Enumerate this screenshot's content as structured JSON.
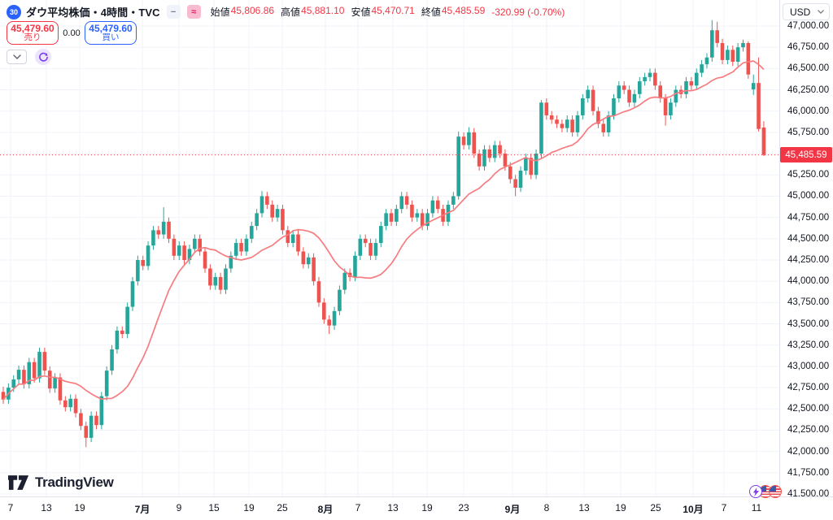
{
  "header": {
    "symbol_badge": "30",
    "title": "ダウ平均株価・4時間・TVC",
    "ohlc": {
      "open_label": "始値",
      "open": "45,806.86",
      "high_label": "高値",
      "high": "45,881.10",
      "low_label": "安値",
      "low": "45,470.71",
      "close_label": "終値",
      "close": "45,485.59",
      "change": "-320.99 (-0.70%)"
    }
  },
  "trade_panel": {
    "sell_price": "45,479.60",
    "sell_label": "売り",
    "spread": "0.00",
    "buy_price": "45,479.60",
    "buy_label": "買い"
  },
  "price_axis": {
    "currency": "USD",
    "last_price_label": "45,485.59"
  },
  "logo": {
    "text": "TradingView"
  },
  "colors": {
    "up": "#26a69a",
    "down": "#ef5350",
    "ma_line": "#f77c80",
    "accent_red": "#f23645",
    "accent_blue": "#2962ff",
    "grid": "#f0f3fa",
    "axis_text": "#131722",
    "purple": "#7c3aed"
  },
  "chart_data": {
    "type": "candlestick",
    "title": "ダウ平均株価・4時間・TVC",
    "ylabel": "USD",
    "ylim": [
      41500,
      47000
    ],
    "y_tick_step": 250,
    "grid": true,
    "last_price": 45485.59,
    "overlay": {
      "kind": "sma",
      "period": 14
    },
    "x_ticks": [
      {
        "label": "7",
        "x": 13,
        "bold": false
      },
      {
        "label": "13",
        "x": 57,
        "bold": false
      },
      {
        "label": "19",
        "x": 98,
        "bold": false
      },
      {
        "label": "7月",
        "x": 175,
        "bold": true
      },
      {
        "label": "9",
        "x": 220,
        "bold": false
      },
      {
        "label": "15",
        "x": 263,
        "bold": false
      },
      {
        "label": "19",
        "x": 306,
        "bold": false
      },
      {
        "label": "25",
        "x": 347,
        "bold": false
      },
      {
        "label": "8月",
        "x": 400,
        "bold": true
      },
      {
        "label": "7",
        "x": 440,
        "bold": false
      },
      {
        "label": "13",
        "x": 483,
        "bold": false
      },
      {
        "label": "19",
        "x": 525,
        "bold": false
      },
      {
        "label": "23",
        "x": 570,
        "bold": false
      },
      {
        "label": "9月",
        "x": 630,
        "bold": true
      },
      {
        "label": "8",
        "x": 672,
        "bold": false
      },
      {
        "label": "13",
        "x": 718,
        "bold": false
      },
      {
        "label": "19",
        "x": 763,
        "bold": false
      },
      {
        "label": "25",
        "x": 806,
        "bold": false
      },
      {
        "label": "10月",
        "x": 852,
        "bold": true
      },
      {
        "label": "7",
        "x": 890,
        "bold": false
      },
      {
        "label": "11",
        "x": 930,
        "bold": false
      }
    ],
    "candles": [
      [
        42700,
        42760,
        42560,
        42610
      ],
      [
        42610,
        42800,
        42560,
        42750
      ],
      [
        42750,
        42896,
        42700,
        42846
      ],
      [
        42846,
        43010,
        42796,
        42960
      ],
      [
        42960,
        43010,
        42740,
        42790
      ],
      [
        42790,
        43100,
        42740,
        43050
      ],
      [
        43050,
        43100,
        42810,
        42860
      ],
      [
        42860,
        43220,
        42810,
        43170
      ],
      [
        43170,
        43220,
        42900,
        42950
      ],
      [
        42950,
        43000,
        42690,
        42740
      ],
      [
        42740,
        42920,
        42690,
        42870
      ],
      [
        42870,
        42920,
        42550,
        42600
      ],
      [
        42600,
        42650,
        42470,
        42520
      ],
      [
        42520,
        42670,
        42470,
        42620
      ],
      [
        42620,
        42670,
        42400,
        42450
      ],
      [
        42450,
        42500,
        42250,
        42300
      ],
      [
        42300,
        42350,
        42050,
        42160
      ],
      [
        42160,
        42470,
        42110,
        42420
      ],
      [
        42420,
        42470,
        42260,
        42310
      ],
      [
        42310,
        42700,
        42260,
        42650
      ],
      [
        42650,
        43000,
        42600,
        42950
      ],
      [
        42950,
        43250,
        42900,
        43200
      ],
      [
        43200,
        43470,
        43150,
        43420
      ],
      [
        43420,
        43470,
        43330,
        43380
      ],
      [
        43380,
        43750,
        43330,
        43700
      ],
      [
        43700,
        44050,
        43650,
        44000
      ],
      [
        44000,
        44300,
        43950,
        44250
      ],
      [
        44250,
        44300,
        44130,
        44180
      ],
      [
        44180,
        44470,
        44130,
        44420
      ],
      [
        44420,
        44650,
        44370,
        44600
      ],
      [
        44600,
        44650,
        44500,
        44550
      ],
      [
        44550,
        44870,
        44500,
        44700
      ],
      [
        44700,
        44750,
        44450,
        44500
      ],
      [
        44500,
        44550,
        44250,
        44300
      ],
      [
        44300,
        44470,
        44250,
        44420
      ],
      [
        44420,
        44470,
        44200,
        44250
      ],
      [
        44250,
        44430,
        44200,
        44380
      ],
      [
        44380,
        44550,
        44330,
        44500
      ],
      [
        44500,
        44550,
        44300,
        44350
      ],
      [
        44350,
        44400,
        44100,
        44150
      ],
      [
        44150,
        44200,
        43900,
        43950
      ],
      [
        43950,
        44100,
        43900,
        44050
      ],
      [
        44050,
        44100,
        43850,
        43900
      ],
      [
        43900,
        44200,
        43850,
        44150
      ],
      [
        44150,
        44350,
        44100,
        44300
      ],
      [
        44300,
        44500,
        44250,
        44450
      ],
      [
        44450,
        44500,
        44300,
        44350
      ],
      [
        44350,
        44550,
        44300,
        44500
      ],
      [
        44500,
        44700,
        44450,
        44650
      ],
      [
        44650,
        44850,
        44600,
        44800
      ],
      [
        44800,
        45060,
        44750,
        45000
      ],
      [
        45000,
        45050,
        44850,
        44900
      ],
      [
        44900,
        44950,
        44700,
        44750
      ],
      [
        44750,
        44900,
        44700,
        44850
      ],
      [
        44850,
        44900,
        44550,
        44600
      ],
      [
        44600,
        44650,
        44400,
        44450
      ],
      [
        44450,
        44600,
        44400,
        44550
      ],
      [
        44550,
        44600,
        44300,
        44350
      ],
      [
        44350,
        44400,
        44150,
        44200
      ],
      [
        44200,
        44330,
        44150,
        44280
      ],
      [
        44280,
        44330,
        43950,
        44000
      ],
      [
        44000,
        44050,
        43700,
        43750
      ],
      [
        43750,
        43800,
        43500,
        43550
      ],
      [
        43550,
        43600,
        43380,
        43480
      ],
      [
        43480,
        43700,
        43430,
        43650
      ],
      [
        43650,
        43950,
        43600,
        43900
      ],
      [
        43900,
        44150,
        43850,
        44100
      ],
      [
        44100,
        44150,
        44000,
        44050
      ],
      [
        44050,
        44350,
        44000,
        44300
      ],
      [
        44300,
        44550,
        44250,
        44500
      ],
      [
        44500,
        44550,
        44400,
        44450
      ],
      [
        44450,
        44500,
        44250,
        44300
      ],
      [
        44300,
        44500,
        44250,
        44450
      ],
      [
        44450,
        44700,
        44400,
        44650
      ],
      [
        44650,
        44850,
        44600,
        44800
      ],
      [
        44800,
        44850,
        44650,
        44700
      ],
      [
        44700,
        44900,
        44650,
        44850
      ],
      [
        44850,
        45050,
        44800,
        45000
      ],
      [
        45000,
        45050,
        44850,
        44900
      ],
      [
        44900,
        44950,
        44700,
        44750
      ],
      [
        44750,
        44850,
        44700,
        44800
      ],
      [
        44800,
        44850,
        44600,
        44650
      ],
      [
        44650,
        44850,
        44600,
        44800
      ],
      [
        44800,
        45000,
        44750,
        44950
      ],
      [
        44950,
        45000,
        44800,
        44850
      ],
      [
        44850,
        44900,
        44650,
        44700
      ],
      [
        44700,
        44950,
        44650,
        44900
      ],
      [
        44900,
        45050,
        44850,
        45000
      ],
      [
        45000,
        45760,
        44960,
        45700
      ],
      [
        45700,
        45750,
        45550,
        45600
      ],
      [
        45600,
        45810,
        45550,
        45750
      ],
      [
        45750,
        45800,
        45450,
        45500
      ],
      [
        45500,
        45550,
        45300,
        45350
      ],
      [
        45350,
        45600,
        45300,
        45550
      ],
      [
        45550,
        45600,
        45400,
        45450
      ],
      [
        45450,
        45650,
        45400,
        45600
      ],
      [
        45600,
        45650,
        45450,
        45500
      ],
      [
        45500,
        45550,
        45300,
        45350
      ],
      [
        45350,
        45400,
        45150,
        45200
      ],
      [
        45200,
        45250,
        45000,
        45100
      ],
      [
        45100,
        45350,
        45050,
        45300
      ],
      [
        45300,
        45500,
        45250,
        45450
      ],
      [
        45450,
        45500,
        45200,
        45250
      ],
      [
        45250,
        45550,
        45200,
        45500
      ],
      [
        45500,
        46130,
        45450,
        46100
      ],
      [
        46100,
        46150,
        45900,
        45950
      ],
      [
        45950,
        46000,
        45850,
        45900
      ],
      [
        45900,
        45950,
        45800,
        45850
      ],
      [
        45850,
        45900,
        45750,
        45800
      ],
      [
        45800,
        45950,
        45750,
        45900
      ],
      [
        45900,
        45950,
        45700,
        45750
      ],
      [
        45750,
        46000,
        45700,
        45950
      ],
      [
        45950,
        46200,
        45900,
        46150
      ],
      [
        46150,
        46300,
        46100,
        46250
      ],
      [
        46250,
        46300,
        45950,
        46000
      ],
      [
        46000,
        46050,
        45800,
        45850
      ],
      [
        45850,
        45900,
        45700,
        45750
      ],
      [
        45750,
        46000,
        45700,
        45950
      ],
      [
        45950,
        46200,
        45900,
        46150
      ],
      [
        46150,
        46350,
        46100,
        46300
      ],
      [
        46300,
        46350,
        46200,
        46250
      ],
      [
        46250,
        46300,
        46050,
        46100
      ],
      [
        46100,
        46250,
        46050,
        46200
      ],
      [
        46200,
        46400,
        46150,
        46350
      ],
      [
        46350,
        46450,
        46300,
        46400
      ],
      [
        46400,
        46500,
        46350,
        46450
      ],
      [
        46450,
        46500,
        46250,
        46300
      ],
      [
        46300,
        46350,
        46100,
        46150
      ],
      [
        46150,
        46200,
        45830,
        45950
      ],
      [
        45950,
        46150,
        45900,
        46100
      ],
      [
        46100,
        46300,
        46050,
        46250
      ],
      [
        46250,
        46300,
        46150,
        46200
      ],
      [
        46200,
        46400,
        46150,
        46350
      ],
      [
        46350,
        46400,
        46250,
        46300
      ],
      [
        46300,
        46500,
        46250,
        46450
      ],
      [
        46450,
        46600,
        46400,
        46550
      ],
      [
        46550,
        46680,
        46500,
        46630
      ],
      [
        46630,
        47070,
        46580,
        46950
      ],
      [
        46950,
        47050,
        46750,
        46800
      ],
      [
        46800,
        46850,
        46550,
        46600
      ],
      [
        46600,
        46770,
        46550,
        46720
      ],
      [
        46720,
        46770,
        46530,
        46580
      ],
      [
        46580,
        46800,
        46530,
        46750
      ],
      [
        46750,
        46840,
        46700,
        46800
      ],
      [
        46800,
        46820,
        46380,
        46430
      ],
      [
        46255,
        46430,
        46190,
        46330
      ],
      [
        46330,
        46630,
        45760,
        45790
      ],
      [
        45806.86,
        45881.1,
        45470.71,
        45485.59
      ]
    ]
  }
}
